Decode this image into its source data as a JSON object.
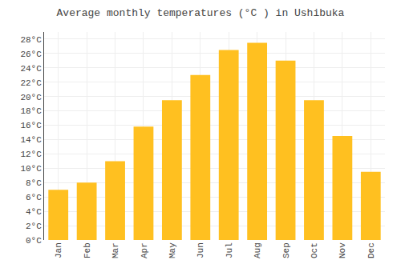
{
  "chart_data": {
    "type": "bar",
    "title": "Average monthly temperatures (°C ) in Ushibuka",
    "categories": [
      "Jan",
      "Feb",
      "Mar",
      "Apr",
      "May",
      "Jun",
      "Jul",
      "Aug",
      "Sep",
      "Oct",
      "Nov",
      "Dec"
    ],
    "values": [
      7.0,
      8.0,
      11.0,
      15.8,
      19.5,
      23.0,
      26.5,
      27.5,
      25.0,
      19.5,
      14.5,
      9.5
    ],
    "color": "#FFC020",
    "ylim": [
      0,
      29
    ],
    "yticks": [
      {
        "value": 0,
        "label": "0°C"
      },
      {
        "value": 2,
        "label": "2°C"
      },
      {
        "value": 4,
        "label": "4°C"
      },
      {
        "value": 6,
        "label": "6°C"
      },
      {
        "value": 8,
        "label": "8°C"
      },
      {
        "value": 10,
        "label": "10°C"
      },
      {
        "value": 12,
        "label": "12°C"
      },
      {
        "value": 14,
        "label": "14°C"
      },
      {
        "value": 16,
        "label": "16°C"
      },
      {
        "value": 18,
        "label": "18°C"
      },
      {
        "value": 20,
        "label": "20°C"
      },
      {
        "value": 22,
        "label": "22°C"
      },
      {
        "value": 24,
        "label": "24°C"
      },
      {
        "value": 26,
        "label": "26°C"
      },
      {
        "value": 28,
        "label": "28°C"
      }
    ],
    "grid": true
  }
}
